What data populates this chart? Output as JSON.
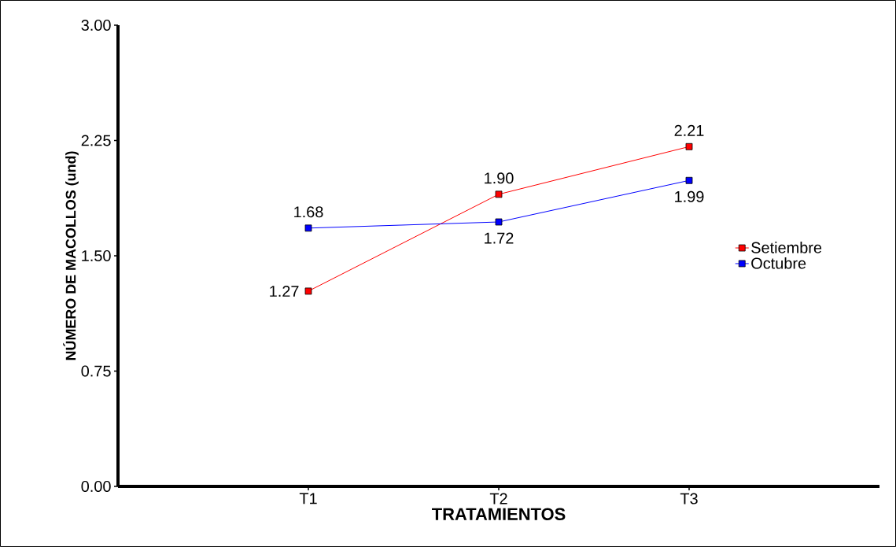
{
  "chart_data": {
    "type": "line",
    "xlabel": "TRATAMIENTOS",
    "ylabel": "NÚMERO DE MACOLLOS (und)",
    "categories": [
      "T1",
      "T2",
      "T3"
    ],
    "series": [
      {
        "name": "Setiembre",
        "color": "#ff0000",
        "values": [
          1.27,
          1.9,
          2.21
        ],
        "value_labels": [
          "1.27",
          "1.90",
          "2.21"
        ]
      },
      {
        "name": "Octubre",
        "color": "#0000ff",
        "values": [
          1.68,
          1.72,
          1.99
        ],
        "value_labels": [
          "1.68",
          "1.72",
          "1.99"
        ]
      }
    ],
    "ylim": [
      0,
      3
    ],
    "yticks": [
      {
        "value": 0,
        "label": "0.00"
      },
      {
        "value": 0.75,
        "label": "0.75"
      },
      {
        "value": 1.5,
        "label": "1.50"
      },
      {
        "value": 2.25,
        "label": "2.25"
      },
      {
        "value": 3,
        "label": "3.00"
      }
    ],
    "legend": "right",
    "marker": "square",
    "line_style": "solid",
    "grid": false
  }
}
